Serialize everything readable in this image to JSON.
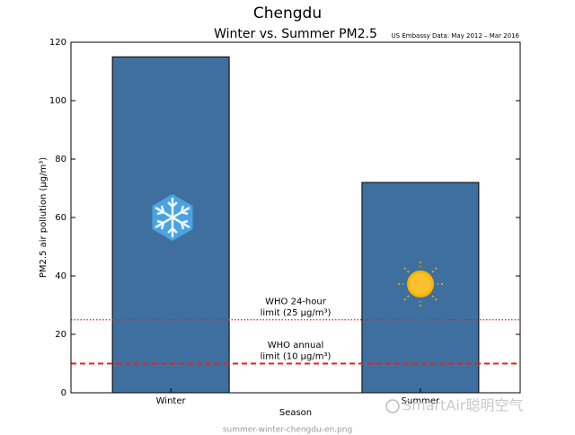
{
  "chart_data": {
    "type": "bar",
    "suptitle": "Chengdu",
    "title": "Winter vs. Summer PM2.5",
    "note": "US Embassy Data: May 2012 – Mar 2016",
    "xlabel": "Season",
    "ylabel": "PM2.5 air pollution (μg/m³)",
    "categories": [
      "Winter",
      "Summer"
    ],
    "values": [
      115,
      72
    ],
    "color": "#3f6f9e",
    "ylim": [
      0,
      120
    ],
    "yticks": [
      0,
      20,
      40,
      60,
      80,
      100,
      120
    ],
    "reference_lines": [
      {
        "value": 25,
        "style": "dotted",
        "color": "#e8201a",
        "label": [
          "WHO 24-hour",
          "limit (25 μg/m³)"
        ]
      },
      {
        "value": 10,
        "style": "dashed",
        "color": "#e8201a",
        "label": [
          "WHO annual",
          "limit (10 μg/m³)"
        ]
      }
    ],
    "watermark": "SmartAir聪明空气",
    "caption": "summer-winter-chengdu-en.png"
  }
}
